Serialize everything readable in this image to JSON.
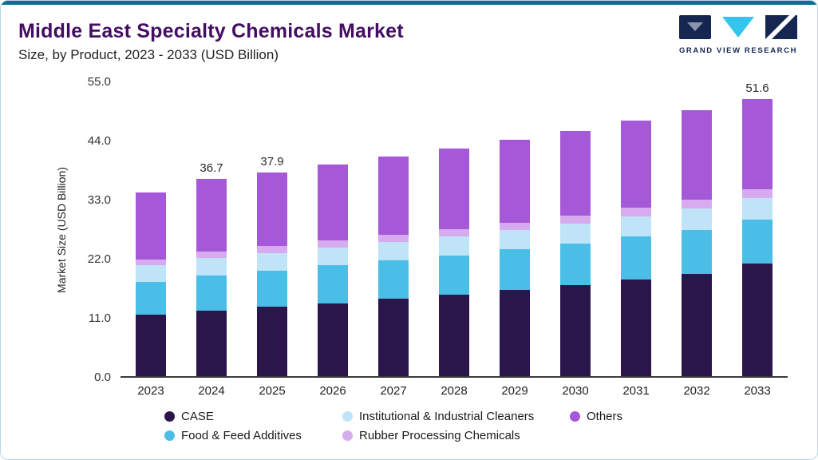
{
  "header": {
    "title": "Middle East Specialty Chemicals Market",
    "subtitle": "Size, by Product, 2023 - 2033 (USD Billion)",
    "logo_text": "GRAND VIEW RESEARCH"
  },
  "chart_data": {
    "type": "bar",
    "stacked": true,
    "title": "Middle East Specialty Chemicals Market Size, by Product, 2023 - 2033 (USD Billion)",
    "ylabel": "Market Size (USD Billion)",
    "ylim": [
      0,
      55
    ],
    "yticks": [
      0,
      11,
      22,
      33,
      44,
      55
    ],
    "grid": false,
    "legend_position": "bottom",
    "categories": [
      "2023",
      "2024",
      "2025",
      "2026",
      "2027",
      "2028",
      "2029",
      "2030",
      "2031",
      "2032",
      "2033"
    ],
    "bar_value_labels": [
      "",
      "36.7",
      "37.9",
      "",
      "",
      "",
      "",
      "",
      "",
      "",
      "51.6"
    ],
    "series": [
      {
        "name": "CASE",
        "color": "#2A164B",
        "values": [
          11.5,
          12.2,
          12.9,
          13.6,
          14.4,
          15.2,
          16.1,
          17.0,
          18.0,
          19.0,
          20.9
        ]
      },
      {
        "name": "Food & Feed Additives",
        "color": "#4BBEE8",
        "values": [
          6.1,
          6.6,
          6.8,
          7.0,
          7.2,
          7.3,
          7.5,
          7.7,
          8.0,
          8.2,
          8.3
        ]
      },
      {
        "name": "Institutional & Industrial Cleaners",
        "color": "#BFE4F7",
        "values": [
          3.0,
          3.2,
          3.2,
          3.4,
          3.4,
          3.5,
          3.6,
          3.7,
          3.8,
          4.0,
          4.0
        ]
      },
      {
        "name": "Rubber Processing Chemicals",
        "color": "#D7ABF0",
        "values": [
          1.1,
          1.2,
          1.3,
          1.3,
          1.3,
          1.4,
          1.4,
          1.5,
          1.5,
          1.6,
          1.6
        ]
      },
      {
        "name": "Others",
        "color": "#A558D8",
        "values": [
          12.5,
          13.5,
          13.7,
          14.1,
          14.6,
          15.0,
          15.4,
          15.8,
          16.3,
          16.7,
          16.8
        ]
      }
    ],
    "totals": [
      34.2,
      36.7,
      37.9,
      39.4,
      40.9,
      42.4,
      44.0,
      45.7,
      47.6,
      49.5,
      51.6
    ]
  },
  "legend": {
    "items": [
      {
        "label": "CASE",
        "color": "#2A164B"
      },
      {
        "label": "Institutional & Industrial Cleaners",
        "color": "#BFE4F7"
      },
      {
        "label": "Others",
        "color": "#A558D8"
      },
      {
        "label": "Food & Feed Additives",
        "color": "#4BBEE8"
      },
      {
        "label": "Rubber Processing Chemicals",
        "color": "#D7ABF0"
      }
    ]
  },
  "colors": {
    "accent_top_bar": "#0B6E92",
    "card_border": "#B9D6E5",
    "title": "#430D63",
    "logo_navy": "#152750",
    "logo_cyan": "#33C5EA"
  }
}
